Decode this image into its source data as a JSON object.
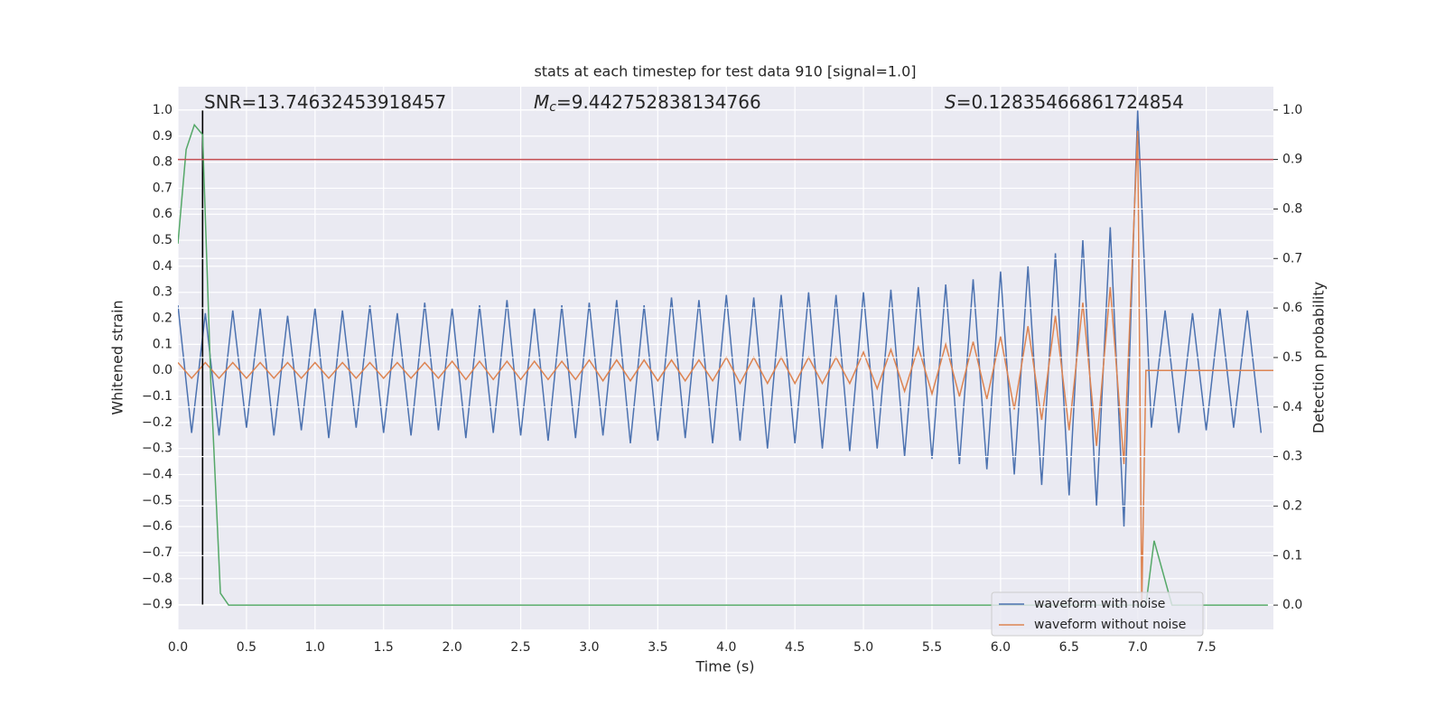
{
  "chart_data": {
    "type": "line",
    "title": "stats at each timestep for test data 910 [signal=1.0]",
    "xlabel": "Time (s)",
    "ylabel": "Whitened strain",
    "y2label": "Detection probability",
    "xlim": [
      0,
      7.99
    ],
    "ylim": [
      -0.995,
      1.09
    ],
    "y2lim": [
      -0.049,
      1.047
    ],
    "grid": true,
    "legend": "lower right",
    "xticks": [
      {
        "value": 0,
        "label": "0.0"
      },
      {
        "value": 0.5,
        "label": "0.5"
      },
      {
        "value": 1,
        "label": "1.0"
      },
      {
        "value": 1.5,
        "label": "1.5"
      },
      {
        "value": 2,
        "label": "2.0"
      },
      {
        "value": 2.5,
        "label": "2.5"
      },
      {
        "value": 3,
        "label": "3.0"
      },
      {
        "value": 3.5,
        "label": "3.5"
      },
      {
        "value": 4,
        "label": "4.0"
      },
      {
        "value": 4.5,
        "label": "4.5"
      },
      {
        "value": 5,
        "label": "5.0"
      },
      {
        "value": 5.5,
        "label": "5.5"
      },
      {
        "value": 6,
        "label": "6.0"
      },
      {
        "value": 6.5,
        "label": "6.5"
      },
      {
        "value": 7,
        "label": "7.0"
      },
      {
        "value": 7.5,
        "label": "7.5"
      }
    ],
    "yticks": [
      {
        "value": -0.9,
        "label": "−0.9"
      },
      {
        "value": -0.8,
        "label": "−0.8"
      },
      {
        "value": -0.7,
        "label": "−0.7"
      },
      {
        "value": -0.6,
        "label": "−0.6"
      },
      {
        "value": -0.5,
        "label": "−0.5"
      },
      {
        "value": -0.4,
        "label": "−0.4"
      },
      {
        "value": -0.3,
        "label": "−0.3"
      },
      {
        "value": -0.2,
        "label": "−0.2"
      },
      {
        "value": -0.1,
        "label": "−0.1"
      },
      {
        "value": 0,
        "label": "0.0"
      },
      {
        "value": 0.1,
        "label": "0.1"
      },
      {
        "value": 0.2,
        "label": "0.2"
      },
      {
        "value": 0.3,
        "label": "0.3"
      },
      {
        "value": 0.4,
        "label": "0.4"
      },
      {
        "value": 0.5,
        "label": "0.5"
      },
      {
        "value": 0.6,
        "label": "0.6"
      },
      {
        "value": 0.7,
        "label": "0.7"
      },
      {
        "value": 0.8,
        "label": "0.8"
      },
      {
        "value": 0.9,
        "label": "0.9"
      },
      {
        "value": 1,
        "label": "1.0"
      }
    ],
    "y2ticks": [
      {
        "value": 0,
        "label": "0.0"
      },
      {
        "value": 0.1,
        "label": "0.1"
      },
      {
        "value": 0.2,
        "label": "0.2"
      },
      {
        "value": 0.3,
        "label": "0.3"
      },
      {
        "value": 0.4,
        "label": "0.4"
      },
      {
        "value": 0.5,
        "label": "0.5"
      },
      {
        "value": 0.6,
        "label": "0.6"
      },
      {
        "value": 0.7,
        "label": "0.7"
      },
      {
        "value": 0.8,
        "label": "0.8"
      },
      {
        "value": 0.9,
        "label": "0.9"
      },
      {
        "value": 1,
        "label": "1.0"
      }
    ],
    "series": [
      {
        "name": "waveform with noise",
        "color": "#4c72b0",
        "x": [
          0,
          0.1,
          0.2,
          0.3,
          0.4,
          0.5,
          0.6,
          0.7,
          0.8,
          0.9,
          1,
          1.1,
          1.2,
          1.3,
          1.4,
          1.5,
          1.6,
          1.7,
          1.8,
          1.9,
          2,
          2.1,
          2.2,
          2.3,
          2.4,
          2.5,
          2.6,
          2.7,
          2.8,
          2.9,
          3,
          3.1,
          3.2,
          3.3,
          3.4,
          3.5,
          3.6,
          3.7,
          3.8,
          3.9,
          4,
          4.1,
          4.2,
          4.3,
          4.4,
          4.5,
          4.6,
          4.7,
          4.8,
          4.9,
          5,
          5.1,
          5.2,
          5.3,
          5.4,
          5.5,
          5.6,
          5.7,
          5.8,
          5.9,
          6,
          6.1,
          6.2,
          6.3,
          6.4,
          6.5,
          6.6,
          6.7,
          6.8,
          6.9,
          7,
          7.1,
          7.2,
          7.3,
          7.4,
          7.5,
          7.6,
          7.7,
          7.8,
          7.9
        ],
        "values": [
          0.25,
          -0.24,
          0.22,
          -0.25,
          0.23,
          -0.22,
          0.24,
          -0.25,
          0.21,
          -0.23,
          0.24,
          -0.26,
          0.23,
          -0.22,
          0.25,
          -0.24,
          0.22,
          -0.25,
          0.26,
          -0.23,
          0.24,
          -0.26,
          0.25,
          -0.24,
          0.27,
          -0.25,
          0.24,
          -0.27,
          0.25,
          -0.26,
          0.26,
          -0.25,
          0.27,
          -0.28,
          0.25,
          -0.27,
          0.28,
          -0.26,
          0.27,
          -0.28,
          0.29,
          -0.27,
          0.28,
          -0.3,
          0.29,
          -0.28,
          0.3,
          -0.3,
          0.29,
          -0.31,
          0.3,
          -0.3,
          0.31,
          -0.33,
          0.32,
          -0.34,
          0.33,
          -0.36,
          0.35,
          -0.38,
          0.38,
          -0.4,
          0.4,
          -0.44,
          0.45,
          -0.48,
          0.5,
          -0.52,
          0.55,
          -0.6,
          1.0,
          -0.22,
          0.23,
          -0.24,
          0.22,
          -0.23,
          0.24,
          -0.22,
          0.23,
          -0.24
        ]
      },
      {
        "name": "waveform without noise",
        "color": "#dd8452",
        "x": [
          0,
          0.1,
          0.2,
          0.3,
          0.4,
          0.5,
          0.6,
          0.7,
          0.8,
          0.9,
          1,
          1.1,
          1.2,
          1.3,
          1.4,
          1.5,
          1.6,
          1.7,
          1.8,
          1.9,
          2,
          2.1,
          2.2,
          2.3,
          2.4,
          2.5,
          2.6,
          2.7,
          2.8,
          2.9,
          3,
          3.1,
          3.2,
          3.3,
          3.4,
          3.5,
          3.6,
          3.7,
          3.8,
          3.9,
          4,
          4.1,
          4.2,
          4.3,
          4.4,
          4.5,
          4.6,
          4.7,
          4.8,
          4.9,
          5,
          5.1,
          5.2,
          5.3,
          5.4,
          5.5,
          5.6,
          5.7,
          5.8,
          5.9,
          6,
          6.1,
          6.2,
          6.3,
          6.4,
          6.5,
          6.6,
          6.7,
          6.8,
          6.9,
          7,
          7.03,
          7.06,
          7.5,
          7.99
        ],
        "values": [
          0.03,
          -0.03,
          0.03,
          -0.03,
          0.03,
          -0.03,
          0.03,
          -0.03,
          0.03,
          -0.03,
          0.03,
          -0.03,
          0.03,
          -0.03,
          0.03,
          -0.03,
          0.03,
          -0.03,
          0.03,
          -0.03,
          0.035,
          -0.035,
          0.035,
          -0.035,
          0.035,
          -0.035,
          0.035,
          -0.035,
          0.035,
          -0.035,
          0.04,
          -0.04,
          0.04,
          -0.04,
          0.04,
          -0.04,
          0.04,
          -0.04,
          0.04,
          -0.04,
          0.05,
          -0.05,
          0.05,
          -0.05,
          0.05,
          -0.05,
          0.05,
          -0.05,
          0.05,
          -0.05,
          0.07,
          -0.07,
          0.08,
          -0.08,
          0.09,
          -0.09,
          0.1,
          -0.1,
          0.11,
          -0.11,
          0.13,
          -0.15,
          0.17,
          -0.19,
          0.21,
          -0.23,
          0.26,
          -0.29,
          0.32,
          -0.36,
          0.92,
          -0.9,
          0,
          0,
          0
        ]
      }
    ],
    "detection_probability": {
      "color": "#55a868",
      "axis": "y2",
      "x": [
        0,
        0.06,
        0.12,
        0.18,
        0.24,
        0.31,
        0.37,
        7.0,
        7.06,
        7.12,
        7.18,
        7.25,
        7.95
      ],
      "values": [
        0.73,
        0.92,
        0.97,
        0.95,
        0.45,
        0.024,
        0,
        0,
        0,
        0.13,
        0.07,
        0,
        0
      ]
    },
    "threshold": {
      "value": 0.9,
      "axis": "y2",
      "color": "#c44e52"
    },
    "marker": {
      "x": 0.18,
      "ylim": [
        -0.9,
        1.0
      ],
      "color": "#000000"
    },
    "annotations": [
      {
        "text": "SNR=13.74632453918457"
      },
      {
        "symbol": "M",
        "sub": "c",
        "text": "=9.442752838134766"
      },
      {
        "symbol": "S",
        "text": "=0.12835466861724854"
      }
    ]
  }
}
